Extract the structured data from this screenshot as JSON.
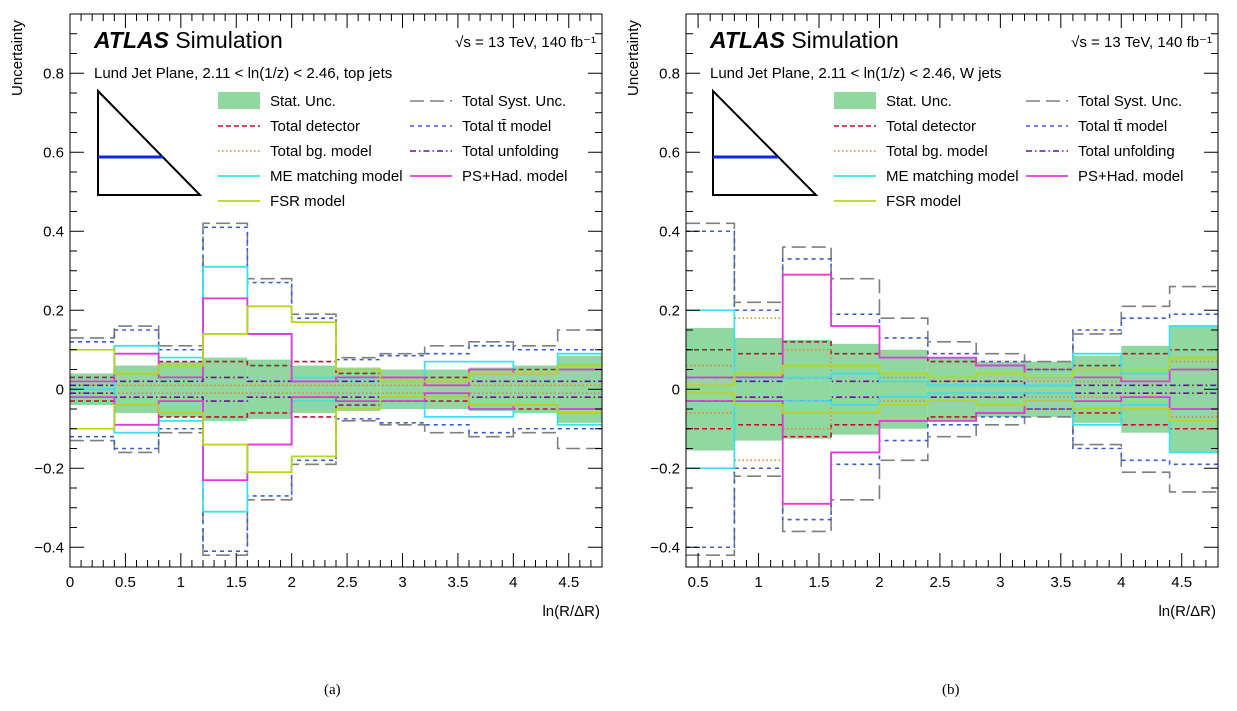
{
  "captions": [
    "(a)",
    "(b)"
  ],
  "chart_data": [
    {
      "type": "line",
      "panel": "a",
      "title_brand": "ATLAS",
      "title_rest": "Simulation",
      "energy": "√s = 13 TeV, 140 fb⁻¹",
      "subtitle": "Lund Jet Plane, 2.11 < ln(1/z) < 2.46, top jets",
      "xlabel": "ln(R/ΔR)",
      "ylabel": "Uncertainty",
      "xlim": [
        0,
        4.8
      ],
      "ylim": [
        -0.45,
        0.95
      ],
      "x_ticks": [
        "0",
        "0.5",
        "1",
        "1.5",
        "2",
        "2.5",
        "3",
        "3.5",
        "4",
        "4.5"
      ],
      "y_ticks": [
        "−0.4",
        "−0.2",
        "0",
        "0.2",
        "0.4",
        "0.6",
        "0.8"
      ],
      "bin_edges": [
        0,
        0.4,
        0.8,
        1.2,
        1.6,
        2.0,
        2.4,
        2.8,
        3.2,
        3.6,
        4.0,
        4.4,
        4.8
      ],
      "stat_unc": [
        0.04,
        0.06,
        0.07,
        0.08,
        0.075,
        0.06,
        0.055,
        0.05,
        0.05,
        0.055,
        0.06,
        0.085
      ],
      "series": [
        {
          "name": "Total Syst. Unc.",
          "color": "#7f7f7f",
          "style": "longdash",
          "symmetric": true,
          "values": [
            0.13,
            0.16,
            0.11,
            0.42,
            0.28,
            0.19,
            0.08,
            0.09,
            0.11,
            0.12,
            0.11,
            0.15
          ]
        },
        {
          "name": "Total detector",
          "color": "#c8102e",
          "style": "dash",
          "symmetric": true,
          "values": [
            0.03,
            0.04,
            0.07,
            0.07,
            0.06,
            0.07,
            0.04,
            0.03,
            0.03,
            0.04,
            0.05,
            0.06
          ]
        },
        {
          "name": "Total tt̄ model",
          "color": "#3a5fcd",
          "style": "shortdash",
          "symmetric": true,
          "values": [
            0.12,
            0.15,
            0.1,
            0.41,
            0.27,
            0.18,
            0.075,
            0.085,
            0.09,
            0.11,
            0.1,
            0.1
          ]
        },
        {
          "name": "Total bg. model",
          "color": "#e8842c",
          "style": "dot",
          "symmetric": true,
          "values": [
            0.01,
            0.01,
            0.01,
            0.01,
            0.01,
            0.01,
            0.01,
            0.01,
            0.01,
            0.01,
            0.01,
            0.01
          ]
        },
        {
          "name": "Total unfolding",
          "color": "#6a0dad",
          "style": "dashdot",
          "symmetric": true,
          "values": [
            0.01,
            0.02,
            0.02,
            0.03,
            0.02,
            0.02,
            0.02,
            0.02,
            0.02,
            0.02,
            0.02,
            0.02
          ]
        },
        {
          "name": "ME matching model",
          "color": "#40e0e8",
          "style": "solid",
          "symmetric": true,
          "values": [
            0.0,
            0.11,
            0.08,
            0.31,
            0.14,
            0.03,
            0.03,
            0.02,
            0.07,
            0.07,
            0.04,
            0.09
          ]
        },
        {
          "name": "PS+Had. model",
          "color": "#e03ad8",
          "style": "solid",
          "symmetric": true,
          "values": [
            0.02,
            0.09,
            0.03,
            0.23,
            0.14,
            0.02,
            0.03,
            0.03,
            0.01,
            0.05,
            0.04,
            0.05
          ]
        },
        {
          "name": "FSR model",
          "color": "#b5d81e",
          "style": "solid",
          "symmetric": true,
          "values": [
            0.1,
            0.04,
            0.06,
            0.14,
            0.21,
            0.17,
            0.05,
            0.02,
            0.02,
            0.04,
            0.04,
            0.06
          ]
        }
      ]
    },
    {
      "type": "line",
      "panel": "b",
      "title_brand": "ATLAS",
      "title_rest": "Simulation",
      "energy": "√s = 13 TeV, 140 fb⁻¹",
      "subtitle": "Lund Jet Plane, 2.11 < ln(1/z) < 2.46, W jets",
      "xlabel": "ln(R/ΔR)",
      "ylabel": "Uncertainty",
      "xlim": [
        0.4,
        4.8
      ],
      "ylim": [
        -0.45,
        0.95
      ],
      "x_ticks": [
        "0.5",
        "1",
        "1.5",
        "2",
        "2.5",
        "3",
        "3.5",
        "4",
        "4.5"
      ],
      "y_ticks": [
        "−0.4",
        "−0.2",
        "0",
        "0.2",
        "0.4",
        "0.6",
        "0.8"
      ],
      "bin_edges": [
        0.4,
        0.8,
        1.2,
        1.6,
        2.0,
        2.4,
        2.8,
        3.2,
        3.6,
        4.0,
        4.4,
        4.8
      ],
      "stat_unc": [
        0.155,
        0.13,
        0.125,
        0.115,
        0.1,
        0.08,
        0.07,
        0.07,
        0.085,
        0.11,
        0.16
      ],
      "series": [
        {
          "name": "Total Syst. Unc.",
          "color": "#7f7f7f",
          "style": "longdash",
          "symmetric": true,
          "values": [
            0.42,
            0.22,
            0.36,
            0.28,
            0.18,
            0.12,
            0.09,
            0.07,
            0.14,
            0.21,
            0.26
          ]
        },
        {
          "name": "Total detector",
          "color": "#c8102e",
          "style": "dash",
          "symmetric": true,
          "values": [
            0.1,
            0.09,
            0.12,
            0.09,
            0.08,
            0.07,
            0.06,
            0.05,
            0.06,
            0.09,
            0.1
          ]
        },
        {
          "name": "Total tt̄ model",
          "color": "#3a5fcd",
          "style": "shortdash",
          "symmetric": true,
          "values": [
            0.4,
            0.2,
            0.33,
            0.19,
            0.13,
            0.09,
            0.07,
            0.05,
            0.15,
            0.18,
            0.19
          ]
        },
        {
          "name": "Total bg. model",
          "color": "#e8842c",
          "style": "dot",
          "symmetric": true,
          "values": [
            0.06,
            0.18,
            0.1,
            0.04,
            0.03,
            0.02,
            0.02,
            0.02,
            0.02,
            0.04,
            0.07
          ]
        },
        {
          "name": "Total unfolding",
          "color": "#6a0dad",
          "style": "dashdot",
          "symmetric": true,
          "values": [
            0.03,
            0.02,
            0.03,
            0.02,
            0.02,
            0.02,
            0.02,
            0.01,
            0.01,
            0.01,
            0.01
          ]
        },
        {
          "name": "ME matching model",
          "color": "#40e0e8",
          "style": "solid",
          "symmetric": true,
          "values": [
            0.2,
            0.03,
            0.03,
            0.04,
            0.02,
            0.01,
            0.01,
            0.01,
            0.09,
            0.04,
            0.16
          ]
        },
        {
          "name": "PS+Had. model",
          "color": "#e03ad8",
          "style": "solid",
          "symmetric": true,
          "values": [
            0.03,
            0.03,
            0.29,
            0.16,
            0.08,
            0.08,
            0.06,
            0.03,
            0.03,
            0.02,
            0.05
          ]
        },
        {
          "name": "FSR model",
          "color": "#b5d81e",
          "style": "solid",
          "symmetric": true,
          "values": [
            0.01,
            0.04,
            0.06,
            0.06,
            0.04,
            0.03,
            0.04,
            0.03,
            0.05,
            0.05,
            0.08
          ]
        }
      ]
    }
  ]
}
